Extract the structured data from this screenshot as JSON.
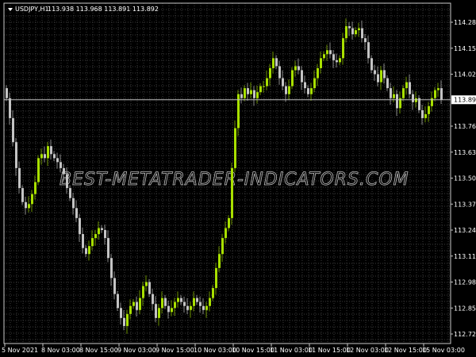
{
  "header": {
    "symbol": "USDJPY,H1",
    "ohlc": "113.938 113.968 113.891 113.892"
  },
  "watermark": "BEST-METATRADER-INDICATORS.COM",
  "colors": {
    "background": "#000000",
    "bull": "#a8e000",
    "bear": "#c4c4c4",
    "grid": "#3a3a3a",
    "bid_line": "#c0c0c0",
    "text": "#ffffff"
  },
  "chart_data": {
    "type": "candlestick",
    "title": "USDJPY,H1",
    "timeframe": "H1",
    "ylim": [
      112.68,
      114.33
    ],
    "y_ticks": [
      "114.280",
      "114.150",
      "114.020",
      "113.760",
      "113.630",
      "113.500",
      "113.370",
      "113.240",
      "113.110",
      "112.980",
      "112.850",
      "112.720"
    ],
    "x_ticks": [
      "5 Nov 2021",
      "8 Nov 03:00",
      "8 Nov 15:00",
      "9 Nov 03:00",
      "9 Nov 15:00",
      "10 Nov 03:00",
      "10 Nov 15:00",
      "11 Nov 03:00",
      "11 Nov 15:00",
      "12 Nov 03:00",
      "12 Nov 15:00",
      "15 Nov 03:00"
    ],
    "current_price": "113.892",
    "grid": true,
    "close": [
      113.9,
      113.8,
      113.68,
      113.55,
      113.45,
      113.38,
      113.35,
      113.37,
      113.42,
      113.48,
      113.6,
      113.62,
      113.6,
      113.66,
      113.62,
      113.6,
      113.58,
      113.55,
      113.52,
      113.45,
      113.4,
      113.35,
      113.3,
      113.22,
      113.15,
      113.12,
      113.16,
      113.2,
      113.22,
      113.25,
      113.24,
      113.2,
      113.1,
      113.0,
      112.92,
      112.85,
      112.8,
      112.76,
      112.82,
      112.86,
      112.88,
      112.84,
      112.9,
      112.96,
      112.98,
      112.92,
      112.87,
      112.8,
      112.85,
      112.9,
      112.86,
      112.83,
      112.85,
      112.88,
      112.9,
      112.88,
      112.86,
      112.84,
      112.86,
      112.9,
      112.88,
      112.86,
      112.84,
      112.86,
      112.9,
      112.95,
      113.05,
      113.12,
      113.2,
      113.25,
      113.3,
      113.55,
      113.75,
      113.92,
      113.9,
      113.95,
      113.92,
      113.94,
      113.9,
      113.93,
      113.96,
      113.96,
      114.0,
      114.05,
      114.1,
      114.06,
      114.0,
      113.96,
      113.92,
      113.96,
      114.04,
      114.06,
      114.04,
      113.98,
      113.95,
      113.92,
      113.95,
      114.0,
      114.05,
      114.1,
      114.12,
      114.14,
      114.12,
      114.09,
      114.08,
      114.1,
      114.2,
      114.26,
      114.25,
      114.22,
      114.24,
      114.25,
      114.2,
      114.18,
      114.1,
      114.04,
      114.02,
      113.98,
      114.04,
      114.0,
      113.95,
      113.9,
      113.92,
      113.85,
      113.9,
      113.95,
      113.98,
      113.92,
      113.88,
      113.9,
      113.84,
      113.8,
      113.82,
      113.86,
      113.9,
      113.94,
      113.95,
      113.892
    ]
  }
}
